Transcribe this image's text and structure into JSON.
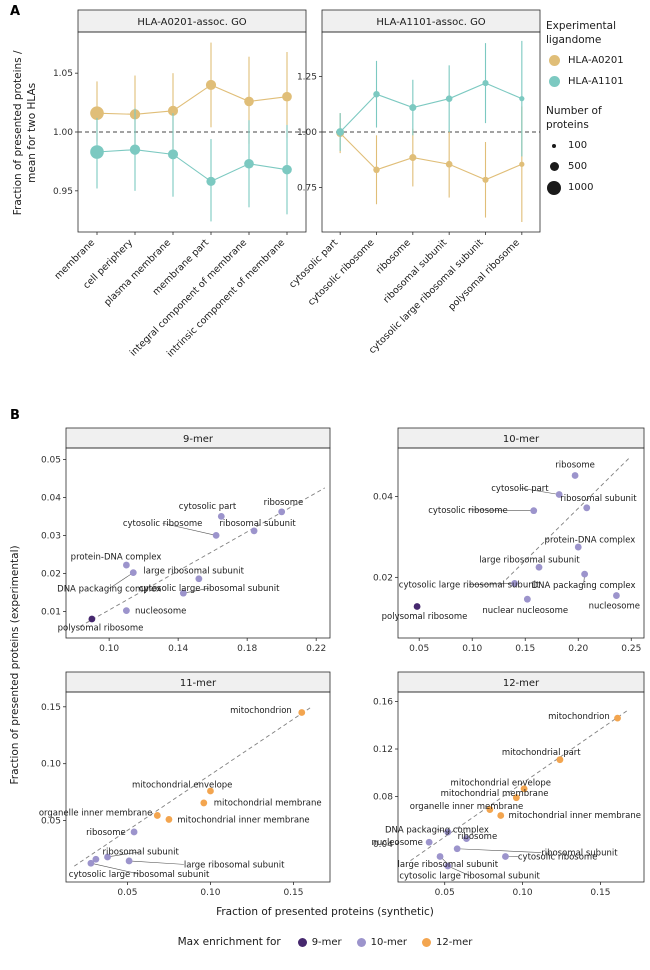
{
  "colors": {
    "hla_a0201": "#E0BE78",
    "hla_a1101": "#7CC9C1",
    "mer9": "#46286E",
    "mer10": "#9C94CC",
    "mer12": "#F3A54F",
    "header_bg": "#F0F0F0",
    "border": "#2B2B2B"
  },
  "chart_data": [
    {
      "type": "dot-errorbar",
      "panel_label": "A",
      "y_axis_label_line1": "Fraction of presented proteins /",
      "y_axis_label_line2": "mean for two HLAs",
      "ref_line_y": 1.0,
      "legend_color_title_line1": "Experimental",
      "legend_color_title_line2": "ligandome",
      "legend_size_title_line1": "Number of",
      "legend_size_title_line2": "proteins",
      "legend_color_entries": [
        {
          "label": "HLA-A0201",
          "color_key": "hla_a0201"
        },
        {
          "label": "HLA-A1101",
          "color_key": "hla_a1101"
        }
      ],
      "legend_size_entries": [
        {
          "label": "100",
          "n": 100
        },
        {
          "label": "500",
          "n": 500
        },
        {
          "label": "1000",
          "n": 1000
        }
      ],
      "facets": [
        {
          "title": "HLA-A0201-assoc. GO",
          "categories": [
            "membrane",
            "cell periphery",
            "plasma membrane",
            "membrane part",
            "integral component of membrane",
            "intrinsic component of membrane"
          ],
          "ylim": [
            0.915,
            1.085
          ],
          "yticks": [
            "0.95",
            "1.00",
            "1.05"
          ],
          "series": [
            {
              "name": "HLA-A0201",
              "color_key": "hla_a0201",
              "y": [
                1.016,
                1.015,
                1.018,
                1.04,
                1.026,
                1.03
              ],
              "lo": [
                0.992,
                0.985,
                0.986,
                1.004,
                0.99,
                0.995
              ],
              "hi": [
                1.043,
                1.048,
                1.05,
                1.076,
                1.064,
                1.068
              ],
              "n": [
                1050,
                520,
                480,
                500,
                430,
                430
              ]
            },
            {
              "name": "HLA-A1101",
              "color_key": "hla_a1101",
              "y": [
                0.983,
                0.985,
                0.981,
                0.958,
                0.973,
                0.968
              ],
              "lo": [
                0.952,
                0.95,
                0.945,
                0.924,
                0.936,
                0.93
              ],
              "hi": [
                1.012,
                1.02,
                1.016,
                0.994,
                1.01,
                1.006
              ],
              "n": [
                1050,
                520,
                480,
                380,
                430,
                430
              ]
            }
          ]
        },
        {
          "title": "HLA-A1101-assoc. GO",
          "categories": [
            "cytosolic part",
            "cytosolic ribosome",
            "ribosome",
            "ribosomal subunit",
            "cytosolic large ribosomal subunit",
            "polysomal ribosome"
          ],
          "ylim": [
            0.55,
            1.45
          ],
          "yticks": [
            "0.75",
            "1.00",
            "1.25"
          ],
          "series": [
            {
              "name": "HLA-A0201",
              "color_key": "hla_a0201",
              "y": [
                0.995,
                0.83,
                0.885,
                0.855,
                0.785,
                0.855
              ],
              "lo": [
                0.905,
                0.675,
                0.755,
                0.705,
                0.615,
                0.595
              ],
              "hi": [
                1.085,
                0.985,
                1.015,
                1.005,
                0.955,
                1.115
              ],
              "n": [
                230,
                130,
                170,
                140,
                110,
                60
              ]
            },
            {
              "name": "HLA-A1101",
              "color_key": "hla_a1101",
              "y": [
                1.0,
                1.17,
                1.11,
                1.15,
                1.22,
                1.15
              ],
              "lo": [
                0.915,
                1.02,
                0.985,
                1.0,
                1.04,
                0.89
              ],
              "hi": [
                1.085,
                1.32,
                1.235,
                1.3,
                1.4,
                1.41
              ],
              "n": [
                230,
                130,
                170,
                140,
                110,
                60
              ]
            }
          ]
        }
      ]
    },
    {
      "type": "scatter",
      "panel_label": "B",
      "x_axis_label": "Fraction of presented proteins (synthetic)",
      "y_axis_label": "Fraction of presented proteins (experimental)",
      "legend_title": "Max enrichment for",
      "legend_entries": [
        {
          "label": "9-mer",
          "color_key": "mer9"
        },
        {
          "label": "10-mer",
          "color_key": "mer10"
        },
        {
          "label": "12-mer",
          "color_key": "mer12"
        }
      ],
      "facets": [
        {
          "title": "9-mer",
          "xlim": [
            0.075,
            0.228
          ],
          "ylim": [
            0.003,
            0.053
          ],
          "xticks": [
            "0.10",
            "0.14",
            "0.18",
            "0.22"
          ],
          "yticks": [
            "0.01",
            "0.02",
            "0.03",
            "0.04",
            "0.05"
          ],
          "dash": [
            [
              0.083,
              0.006
            ],
            [
              0.225,
              0.0425
            ]
          ],
          "points": [
            {
              "label": "ribosome",
              "x": 0.2,
              "y": 0.0362,
              "c": "mer10",
              "lx": 0.201,
              "ly": 0.0388,
              "a": "middle"
            },
            {
              "label": "cytosolic part",
              "x": 0.165,
              "y": 0.035,
              "c": "mer10",
              "lx": 0.157,
              "ly": 0.0378,
              "a": "middle"
            },
            {
              "label": "cytosolic ribosome",
              "x": 0.162,
              "y": 0.03,
              "c": "mer10",
              "lx": 0.131,
              "ly": 0.0332,
              "a": "middle",
              "leader": true
            },
            {
              "label": "ribosomal subunit",
              "x": 0.184,
              "y": 0.0312,
              "c": "mer10",
              "lx": 0.186,
              "ly": 0.0333,
              "a": "middle"
            },
            {
              "label": "protein-DNA complex",
              "x": 0.11,
              "y": 0.0222,
              "c": "mer10",
              "lx": 0.104,
              "ly": 0.0244,
              "a": "middle"
            },
            {
              "label": "large ribosomal subunit",
              "x": 0.152,
              "y": 0.0186,
              "c": "mer10",
              "lx": 0.149,
              "ly": 0.0208,
              "a": "middle"
            },
            {
              "label": "DNA packaging complex",
              "x": 0.114,
              "y": 0.0202,
              "c": "mer10",
              "lx": 0.1,
              "ly": 0.016,
              "a": "middle",
              "leader": true
            },
            {
              "label": "cytosolic large ribosomal subunit",
              "x": 0.143,
              "y": 0.0148,
              "c": "mer10",
              "lx": 0.158,
              "ly": 0.0161,
              "a": "middle",
              "leader": true
            },
            {
              "label": "nucleosome",
              "x": 0.11,
              "y": 0.0102,
              "c": "mer10",
              "lx": 0.115,
              "ly": 0.0102,
              "a": "start"
            },
            {
              "label": "polysomal ribosome",
              "x": 0.09,
              "y": 0.008,
              "c": "mer9",
              "lx": 0.095,
              "ly": 0.0057,
              "a": "middle"
            }
          ]
        },
        {
          "title": "10-mer",
          "xlim": [
            0.03,
            0.262
          ],
          "ylim": [
            0.005,
            0.052
          ],
          "xticks": [
            "0.05",
            "0.10",
            "0.15",
            "0.20",
            "0.25"
          ],
          "yticks": [
            "0.02",
            "0.04"
          ],
          "dash": [
            [
              0.132,
              0.0195
            ],
            [
              0.248,
              0.0495
            ]
          ],
          "points": [
            {
              "label": "ribosome",
              "x": 0.197,
              "y": 0.0452,
              "c": "mer10",
              "lx": 0.197,
              "ly": 0.0479,
              "a": "middle"
            },
            {
              "label": "cytosolic part",
              "x": 0.182,
              "y": 0.0405,
              "c": "mer10",
              "lx": 0.145,
              "ly": 0.0421,
              "a": "middle",
              "leader": true
            },
            {
              "label": "ribosomal subunit",
              "x": 0.208,
              "y": 0.0372,
              "c": "mer10",
              "lx": 0.219,
              "ly": 0.0396,
              "a": "middle"
            },
            {
              "label": "cytosolic ribosome",
              "x": 0.158,
              "y": 0.0365,
              "c": "mer10",
              "lx": 0.096,
              "ly": 0.0367,
              "a": "middle",
              "leader": true
            },
            {
              "label": "protein-DNA complex",
              "x": 0.2,
              "y": 0.0275,
              "c": "mer10",
              "lx": 0.211,
              "ly": 0.0294,
              "a": "middle"
            },
            {
              "label": "large ribosomal subunit",
              "x": 0.163,
              "y": 0.0225,
              "c": "mer10",
              "lx": 0.154,
              "ly": 0.0244,
              "a": "middle"
            },
            {
              "label": "cytosolic large ribosomal subunit",
              "x": 0.14,
              "y": 0.0185,
              "c": "mer10",
              "lx": 0.097,
              "ly": 0.0182,
              "a": "middle",
              "leader": true
            },
            {
              "label": "DNA packaging complex",
              "x": 0.206,
              "y": 0.0208,
              "c": "mer10",
              "lx": 0.205,
              "ly": 0.0181,
              "a": "middle",
              "leader": true
            },
            {
              "label": "nucleosome",
              "x": 0.236,
              "y": 0.0155,
              "c": "mer10",
              "lx": 0.234,
              "ly": 0.0131,
              "a": "middle"
            },
            {
              "label": "nuclear nucleosome",
              "x": 0.152,
              "y": 0.0146,
              "c": "mer10",
              "lx": 0.15,
              "ly": 0.0119,
              "a": "middle"
            },
            {
              "label": "polysomal ribosome",
              "x": 0.048,
              "y": 0.0128,
              "c": "mer9",
              "lx": 0.055,
              "ly": 0.0104,
              "a": "middle"
            }
          ]
        },
        {
          "title": "11-mer",
          "xlim": [
            0.013,
            0.172
          ],
          "ylim": [
            -0.004,
            0.163
          ],
          "xticks": [
            "0.05",
            "0.10",
            "0.15"
          ],
          "yticks": [
            "0.05",
            "0.10",
            "0.15"
          ],
          "dash": [
            [
              0.018,
              0.01
            ],
            [
              0.16,
              0.149
            ]
          ],
          "points": [
            {
              "label": "mitochondrion",
              "x": 0.155,
              "y": 0.145,
              "c": "mer12",
              "lx": 0.149,
              "ly": 0.147,
              "a": "end"
            },
            {
              "label": "mitochondrial envelope",
              "x": 0.1,
              "y": 0.076,
              "c": "mer12",
              "lx": 0.083,
              "ly": 0.0818,
              "a": "middle"
            },
            {
              "label": "mitochondrial membrane",
              "x": 0.096,
              "y": 0.0655,
              "c": "mer12",
              "lx": 0.102,
              "ly": 0.0657,
              "a": "start"
            },
            {
              "label": "organelle inner membrane",
              "x": 0.068,
              "y": 0.0545,
              "c": "mer12",
              "lx": 0.065,
              "ly": 0.0572,
              "a": "end"
            },
            {
              "label": "mitochondrial inner membrane",
              "x": 0.075,
              "y": 0.051,
              "c": "mer12",
              "lx": 0.08,
              "ly": 0.0508,
              "a": "start"
            },
            {
              "label": "ribosome",
              "x": 0.054,
              "y": 0.04,
              "c": "mer10",
              "lx": 0.049,
              "ly": 0.04,
              "a": "end"
            },
            {
              "label": "ribosomal subunit",
              "x": 0.038,
              "y": 0.018,
              "c": "mer10",
              "lx": 0.058,
              "ly": 0.0226,
              "a": "middle",
              "leader": true
            },
            {
              "label": "large ribosomal subunit",
              "x": 0.051,
              "y": 0.0145,
              "c": "mer10",
              "lx": 0.084,
              "ly": 0.0115,
              "a": "start",
              "leader": true
            },
            {
              "label": "cytosolic large ribosomal subunit",
              "x": 0.028,
              "y": 0.0125,
              "c": "mer10",
              "lx": 0.057,
              "ly": 0.003,
              "a": "middle",
              "leader": true
            },
            {
              "label": "",
              "x": 0.031,
              "y": 0.016,
              "c": "mer10"
            }
          ]
        },
        {
          "title": "12-mer",
          "xlim": [
            0.02,
            0.178
          ],
          "ylim": [
            0.008,
            0.168
          ],
          "xticks": [
            "0.05",
            "0.10",
            "0.15"
          ],
          "yticks": [
            "0.04",
            "0.08",
            "0.12",
            "0.16"
          ],
          "dash": [
            [
              0.028,
              0.026
            ],
            [
              0.168,
              0.153
            ]
          ],
          "points": [
            {
              "label": "mitochondrion",
              "x": 0.161,
              "y": 0.146,
              "c": "mer12",
              "lx": 0.156,
              "ly": 0.148,
              "a": "end"
            },
            {
              "label": "mitochondrial part",
              "x": 0.124,
              "y": 0.111,
              "c": "mer12",
              "lx": 0.112,
              "ly": 0.1175,
              "a": "middle"
            },
            {
              "label": "mitochondrial envelope",
              "x": 0.101,
              "y": 0.0865,
              "c": "mer12",
              "lx": 0.086,
              "ly": 0.092,
              "a": "middle"
            },
            {
              "label": "mitochondrial membrane",
              "x": 0.096,
              "y": 0.079,
              "c": "mer12",
              "lx": 0.082,
              "ly": 0.0828,
              "a": "middle"
            },
            {
              "label": "organelle inner membrane",
              "x": 0.079,
              "y": 0.069,
              "c": "mer12",
              "lx": 0.064,
              "ly": 0.0718,
              "a": "middle"
            },
            {
              "label": "mitochondrial inner membrane",
              "x": 0.086,
              "y": 0.064,
              "c": "mer12",
              "lx": 0.091,
              "ly": 0.0643,
              "a": "start"
            },
            {
              "label": "DNA packaging complex",
              "x": 0.052,
              "y": 0.05,
              "c": "mer10",
              "lx": 0.045,
              "ly": 0.0523,
              "a": "middle",
              "leader": true
            },
            {
              "label": "ribosome",
              "x": 0.064,
              "y": 0.0445,
              "c": "mer10",
              "lx": 0.071,
              "ly": 0.0468,
              "a": "middle"
            },
            {
              "label": "nucleosome",
              "x": 0.04,
              "y": 0.0415,
              "c": "mer10",
              "lx": 0.036,
              "ly": 0.0415,
              "a": "end"
            },
            {
              "label": "ribosomal subunit",
              "x": 0.058,
              "y": 0.036,
              "c": "mer10",
              "lx": 0.112,
              "ly": 0.0328,
              "a": "start",
              "leader": true
            },
            {
              "label": "large ribosomal subunit",
              "x": 0.047,
              "y": 0.0295,
              "c": "mer10",
              "lx": 0.052,
              "ly": 0.0232,
              "a": "middle",
              "leader": true
            },
            {
              "label": "cytosolic ribosome",
              "x": 0.089,
              "y": 0.0295,
              "c": "mer10",
              "lx": 0.097,
              "ly": 0.0294,
              "a": "start",
              "leader": true
            },
            {
              "label": "cytosolic large ribosomal subunit",
              "x": 0.052,
              "y": 0.0215,
              "c": "mer10",
              "lx": 0.066,
              "ly": 0.0133,
              "a": "middle",
              "leader": true
            }
          ]
        }
      ]
    }
  ]
}
